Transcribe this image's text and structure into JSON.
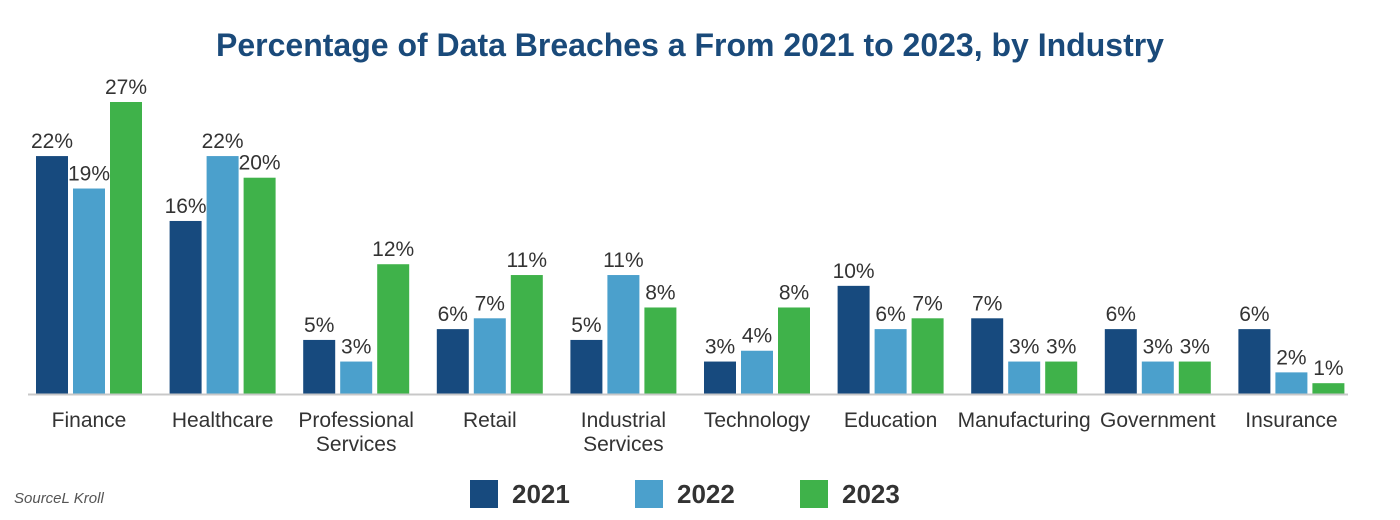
{
  "chart_data": {
    "type": "bar",
    "title": "Percentage of Data Breaches a From 2021 to 2023, by Industry",
    "source": "SourceL Kroll",
    "categories": [
      [
        "Finance"
      ],
      [
        "Healthcare"
      ],
      [
        "Professional",
        "Services"
      ],
      [
        "Retail"
      ],
      [
        "Industrial",
        "Services"
      ],
      [
        "Technology"
      ],
      [
        "Education"
      ],
      [
        "Manufacturing"
      ],
      [
        "Government"
      ],
      [
        "Insurance"
      ]
    ],
    "series": [
      {
        "name": "2021",
        "color": "#174a7e",
        "values": [
          22,
          16,
          5,
          6,
          5,
          3,
          10,
          7,
          6,
          6
        ]
      },
      {
        "name": "2022",
        "color": "#4ba0cc",
        "values": [
          19,
          22,
          3,
          7,
          11,
          4,
          6,
          3,
          3,
          2
        ]
      },
      {
        "name": "2023",
        "color": "#3fb24a",
        "values": [
          27,
          20,
          12,
          11,
          8,
          8,
          7,
          3,
          3,
          1
        ]
      }
    ],
    "value_suffix": "%",
    "ylim": [
      0,
      27
    ],
    "grid": false,
    "legend_position": "bottom"
  }
}
